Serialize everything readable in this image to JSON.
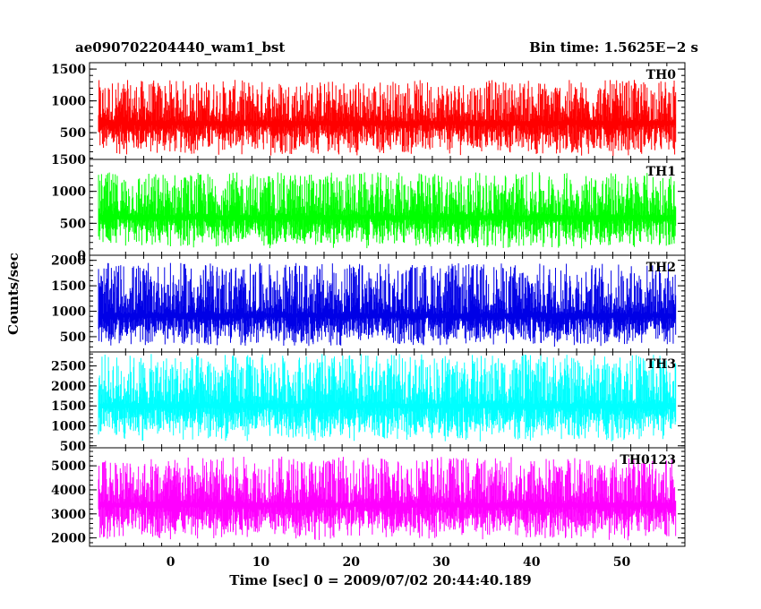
{
  "header": {
    "title": "ae090702204440_wam1_bst",
    "bin_time": "Bin time: 1.5625E−2 s"
  },
  "chart_data": {
    "type": "line",
    "xlabel": "Time [sec] 0 = 2009/07/02 20:44:40.189",
    "ylabel": "Counts/sec",
    "xlim": [
      -9,
      57
    ],
    "x_ticks": [
      "0",
      "10",
      "20",
      "30",
      "40",
      "50"
    ],
    "x_tick_values": [
      0,
      10,
      20,
      30,
      40,
      50
    ],
    "data_x_range": [
      -8,
      56
    ],
    "panels": [
      {
        "name": "TH0",
        "color": "#ff0000",
        "ylim": [
          80,
          1600
        ],
        "y_ticks": [
          500,
          1000,
          1500
        ],
        "y_tick_labels": [
          "500",
          "1000",
          "1500"
        ],
        "mean": 680,
        "spread_low": 130,
        "spread_high": 1330
      },
      {
        "name": "TH1",
        "color": "#00ff00",
        "ylim": [
          0,
          1500
        ],
        "y_ticks": [
          0,
          500,
          1000,
          1500
        ],
        "y_tick_labels": [
          "0",
          "500",
          "1000",
          "1500"
        ],
        "mean": 620,
        "spread_low": 100,
        "spread_high": 1300
      },
      {
        "name": "TH2",
        "color": "#0000e6",
        "ylim": [
          200,
          2100
        ],
        "y_ticks": [
          500,
          1000,
          1500,
          2000
        ],
        "y_tick_labels": [
          "500",
          "1000",
          "1500",
          "2000"
        ],
        "mean": 950,
        "spread_low": 300,
        "spread_high": 1950
      },
      {
        "name": "TH3",
        "color": "#00ffff",
        "ylim": [
          450,
          2850
        ],
        "y_ticks": [
          500,
          1000,
          1500,
          2000,
          2500
        ],
        "y_tick_labels": [
          "500",
          "1000",
          "1500",
          "2000",
          "2500"
        ],
        "mean": 1550,
        "spread_low": 600,
        "spread_high": 2800
      },
      {
        "name": "TH0123",
        "color": "#ff00ff",
        "ylim": [
          1650,
          5750
        ],
        "y_ticks": [
          2000,
          3000,
          4000,
          5000
        ],
        "y_tick_labels": [
          "2000",
          "3000",
          "4000",
          "5000"
        ],
        "mean": 3450,
        "spread_low": 1900,
        "spread_high": 5400
      }
    ]
  }
}
